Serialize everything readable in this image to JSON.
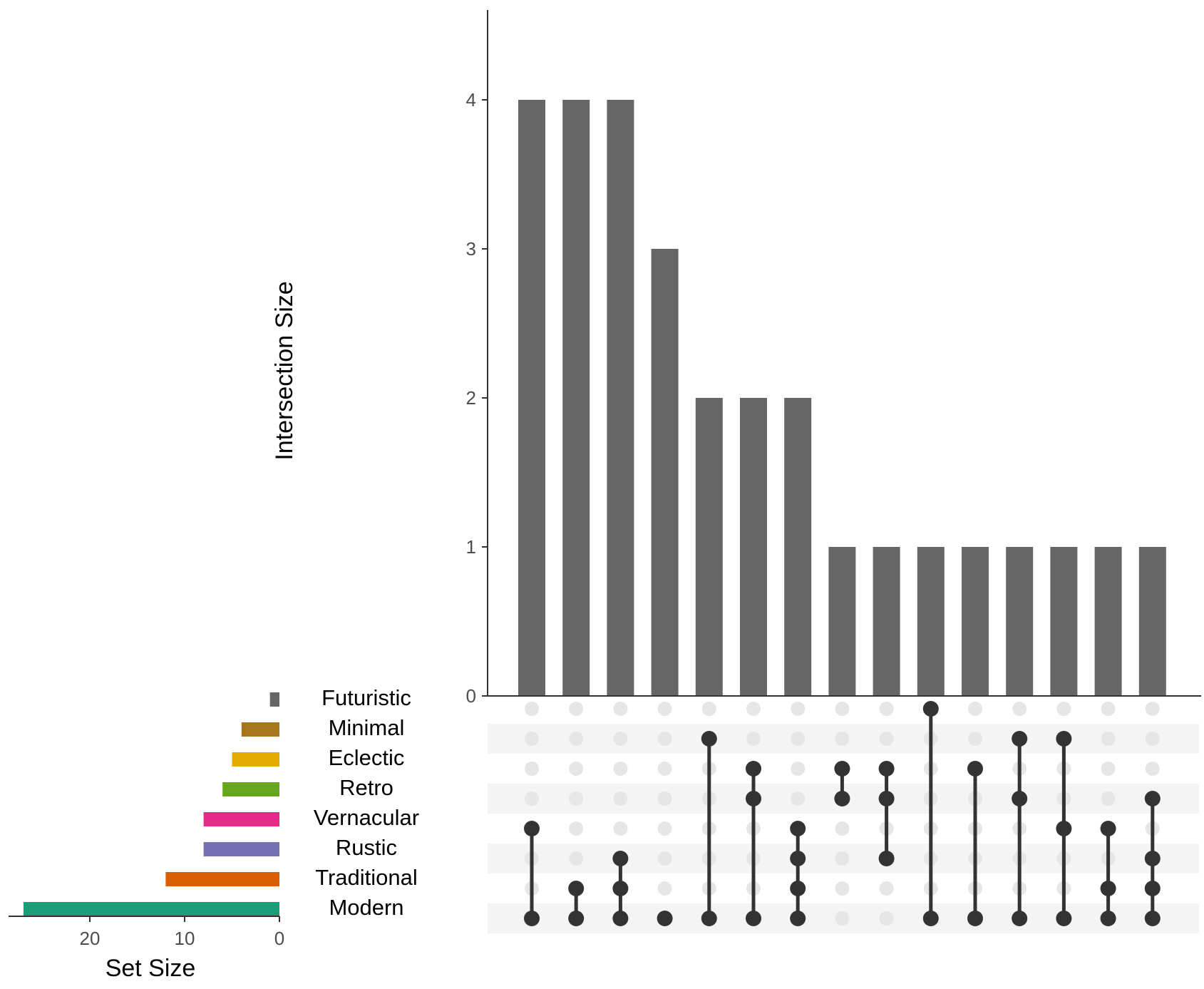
{
  "chart_data": {
    "type": "upset",
    "title": "",
    "ylabel": "Intersection Size",
    "set_size_label": "Set Size",
    "intersection_ylim": [
      0,
      4.6
    ],
    "intersection_yticks": [
      0,
      1,
      2,
      3,
      4
    ],
    "set_size_xticks": [
      20,
      10,
      0
    ],
    "set_size_xlim": [
      0,
      28
    ],
    "sets": [
      {
        "name": "Futuristic",
        "size": 1,
        "color": "#666666"
      },
      {
        "name": "Minimal",
        "size": 4,
        "color": "#A6761D"
      },
      {
        "name": "Eclectic",
        "size": 5,
        "color": "#E6AB02"
      },
      {
        "name": "Retro",
        "size": 6,
        "color": "#66A61E"
      },
      {
        "name": "Vernacular",
        "size": 8,
        "color": "#E7298A"
      },
      {
        "name": "Rustic",
        "size": 8,
        "color": "#7570B3"
      },
      {
        "name": "Traditional",
        "size": 12,
        "color": "#D95F02"
      },
      {
        "name": "Modern",
        "size": 27,
        "color": "#1B9E77"
      }
    ],
    "intersections": [
      {
        "sets": [
          "Vernacular",
          "Modern"
        ],
        "size": 4
      },
      {
        "sets": [
          "Traditional",
          "Modern"
        ],
        "size": 4
      },
      {
        "sets": [
          "Rustic",
          "Traditional",
          "Modern"
        ],
        "size": 4
      },
      {
        "sets": [
          "Modern"
        ],
        "size": 3
      },
      {
        "sets": [
          "Minimal",
          "Modern"
        ],
        "size": 2
      },
      {
        "sets": [
          "Eclectic",
          "Retro",
          "Modern"
        ],
        "size": 2
      },
      {
        "sets": [
          "Vernacular",
          "Rustic",
          "Traditional",
          "Modern"
        ],
        "size": 2
      },
      {
        "sets": [
          "Eclectic",
          "Retro"
        ],
        "size": 1
      },
      {
        "sets": [
          "Eclectic",
          "Retro",
          "Rustic"
        ],
        "size": 1
      },
      {
        "sets": [
          "Futuristic",
          "Modern"
        ],
        "size": 1
      },
      {
        "sets": [
          "Eclectic",
          "Modern"
        ],
        "size": 1
      },
      {
        "sets": [
          "Minimal",
          "Retro",
          "Modern"
        ],
        "size": 1
      },
      {
        "sets": [
          "Minimal",
          "Vernacular",
          "Modern"
        ],
        "size": 1
      },
      {
        "sets": [
          "Vernacular",
          "Traditional",
          "Modern"
        ],
        "size": 1
      },
      {
        "sets": [
          "Retro",
          "Rustic",
          "Traditional",
          "Modern"
        ],
        "size": 1
      }
    ],
    "colors": {
      "bar": "#666666",
      "dot_active": "#333333",
      "dot_inactive": "#e6e6e6",
      "stripe": "#f4f4f4",
      "axis": "#333333"
    }
  }
}
